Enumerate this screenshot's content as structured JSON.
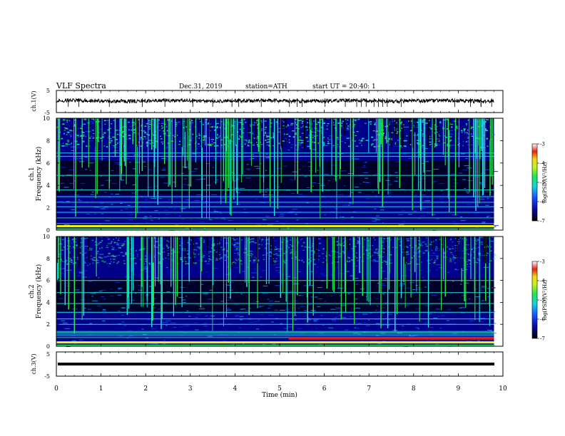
{
  "header": {
    "title": "VLF Spectra",
    "date": "Dec.31, 2019",
    "station": "station=ATH",
    "start": "start UT = 20:40: 1"
  },
  "chart_data": [
    {
      "type": "line",
      "panel": "ch1-waveform",
      "ylabel": "ch.1(V)",
      "yticks": [
        "5",
        "-5"
      ],
      "ylim": [
        -5,
        5
      ],
      "xlim": [
        0,
        10
      ],
      "trace_color": "#000000",
      "description_values": {
        "mean_level_V": 0.3,
        "amplitude_V": 0.8
      }
    },
    {
      "type": "heatmap",
      "panel": "ch1-spectrogram",
      "ylabel": "ch.1 Frequency (kHz)",
      "yticks": [
        "0",
        "2",
        "4",
        "6",
        "8",
        "10"
      ],
      "ylim": [
        0,
        10
      ],
      "xlim": [
        0,
        9.8
      ],
      "colorbar": {
        "label": "log(PSD)(V²/Hz)",
        "ticks": [
          "-3",
          "-4",
          "-5",
          "-6",
          "-7"
        ],
        "range": [
          -7,
          -3
        ]
      },
      "bands_kHz": [
        0.3,
        0.6,
        1.1,
        1.6,
        2.1,
        2.5,
        3.0,
        3.6,
        4.9,
        6.6,
        6.9
      ]
    },
    {
      "type": "heatmap",
      "panel": "ch2-spectrogram",
      "ylabel": "ch.2 Frequency (kHz)",
      "yticks": [
        "0",
        "2",
        "4",
        "6",
        "8",
        "10"
      ],
      "ylim": [
        0,
        10
      ],
      "xlim": [
        0,
        9.8
      ],
      "colorbar": {
        "label": "log(PSD)(V²/Hz)",
        "ticks": [
          "-3",
          "-4",
          "-5",
          "-6",
          "-7"
        ],
        "range": [
          -7,
          -3
        ]
      },
      "bands_kHz": [
        0.3,
        0.8,
        1.3,
        2.0,
        2.5,
        3.1,
        3.9,
        4.9,
        6.0
      ]
    },
    {
      "type": "line",
      "panel": "ch3-waveform",
      "ylabel": "ch.3(V)",
      "yticks": [
        "5",
        "-5"
      ],
      "ylim": [
        -5,
        5
      ],
      "xlim": [
        0,
        10
      ],
      "trace_color": "#000000",
      "description_values": {
        "mean_level_V": 0,
        "amplitude_V": 0.3
      }
    }
  ],
  "xaxis": {
    "label": "Time (min)",
    "ticks": [
      "0",
      "1",
      "2",
      "3",
      "4",
      "5",
      "6",
      "7",
      "8",
      "9",
      "10"
    ],
    "xlim": [
      0,
      10
    ]
  },
  "colors": {
    "low": "#000010",
    "blue": "#0a2bd8",
    "cyan": "#1fe0e0",
    "green": "#27e84a",
    "yellow": "#f1ee1a",
    "red": "#e21a14"
  }
}
